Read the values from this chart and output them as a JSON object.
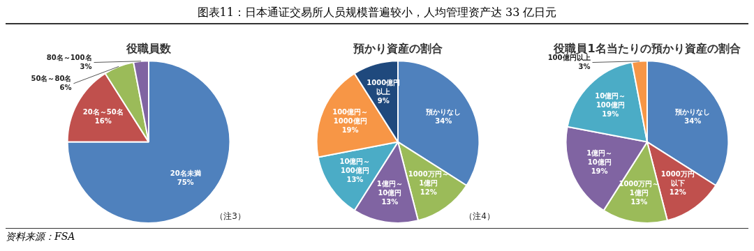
{
  "chart_data": [
    {
      "type": "pie",
      "title": "役職員数",
      "categories": [
        "20名未満",
        "20名～50名",
        "50名～80名",
        "80名～100名"
      ],
      "values": [
        75,
        16,
        6,
        3
      ],
      "value_labels": [
        "75%",
        "16%",
        "6%",
        "3%"
      ],
      "colors": [
        "#4f81bd",
        "#c0504d",
        "#9bbb59",
        "#8064a2"
      ],
      "legend": false,
      "annotations": [
        "图表11：日本通证交易所人员规模普遍较小，人均管理资产达 33 亿日元",
        "（注3）",
        "资料来源：FSA"
      ]
    },
    {
      "type": "pie",
      "title": "預かり資産の割合",
      "categories": [
        "預かりなし",
        "1000万円～1億円",
        "1億円～10億円",
        "10億円～100億円",
        "100億円～1000億円",
        "1000億円以上"
      ],
      "values": [
        34,
        12,
        13,
        13,
        19,
        9
      ],
      "value_labels": [
        "34%",
        "12%",
        "13%",
        "13%",
        "19%",
        "9%"
      ],
      "colors": [
        "#4f81bd",
        "#9bbb59",
        "#8064a2",
        "#4bacc6",
        "#f79646",
        "#1f497d"
      ],
      "legend": false,
      "annotations": [
        "（注4）"
      ]
    },
    {
      "type": "pie",
      "title": "役職員1名当たりの預かり資産の割合",
      "categories": [
        "預かりなし",
        "1000万円以下",
        "1000万円～1億円",
        "1億円～10億円",
        "10億円～100億円",
        "100億円以上"
      ],
      "values": [
        34,
        12,
        13,
        19,
        19,
        3
      ],
      "value_labels": [
        "34%",
        "12%",
        "13%",
        "19%",
        "19%",
        "3%"
      ],
      "colors": [
        "#4f81bd",
        "#c0504d",
        "#9bbb59",
        "#8064a2",
        "#4bacc6",
        "#f79646"
      ],
      "legend": false
    }
  ]
}
